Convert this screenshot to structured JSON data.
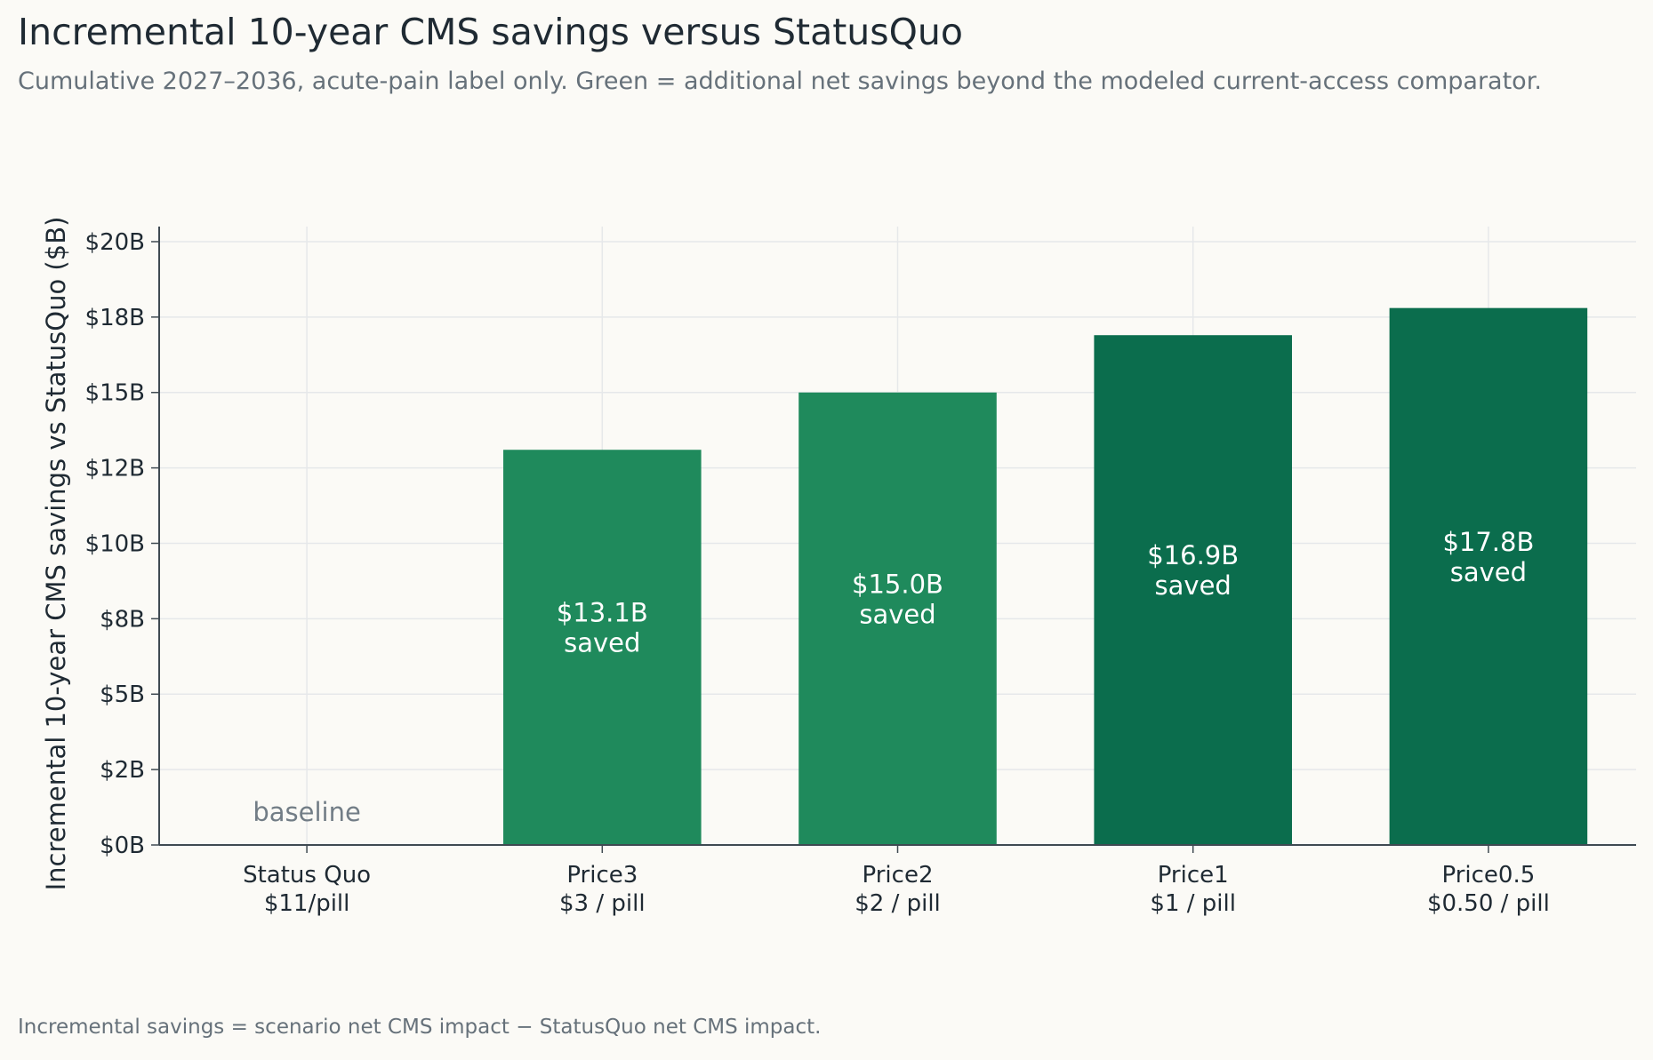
{
  "chart_data": {
    "type": "bar",
    "title": "Incremental 10-year CMS savings versus StatusQuo",
    "subtitle": "Cumulative 2027–2036, acute-pain label only. Green = additional net savings beyond the modeled current-access comparator.",
    "footnote": "Incremental savings = scenario net CMS impact − StatusQuo net CMS impact.",
    "ylabel": "Incremental 10-year CMS savings vs StatusQuo ($B)",
    "xlabel": "",
    "ylim": [
      0,
      20.5
    ],
    "y_ticks": [
      0,
      2.5,
      5,
      7.5,
      10,
      12.5,
      15,
      17.5,
      20
    ],
    "y_tick_labels": [
      "$0B",
      "$2B",
      "$5B",
      "$8B",
      "$10B",
      "$12B",
      "$15B",
      "$18B",
      "$20B"
    ],
    "grid": true,
    "categories": [
      {
        "name": "Status Quo",
        "price": "$11/pill"
      },
      {
        "name": "Price3",
        "price": "$3 / pill"
      },
      {
        "name": "Price2",
        "price": "$2 / pill"
      },
      {
        "name": "Price1",
        "price": "$1 / pill"
      },
      {
        "name": "Price0.5",
        "price": "$0.50 / pill"
      }
    ],
    "values": [
      0,
      13.1,
      15.0,
      16.9,
      17.8
    ],
    "bar_labels": [
      [
        "baseline"
      ],
      [
        "$13.1B",
        "saved"
      ],
      [
        "$15.0B",
        "saved"
      ],
      [
        "$16.9B",
        "saved"
      ],
      [
        "$17.8B",
        "saved"
      ]
    ],
    "colors": [
      "#1f8a5c",
      "#1f8a5c",
      "#1f8a5c",
      "#0b6d4d",
      "#0b6d4d"
    ]
  }
}
